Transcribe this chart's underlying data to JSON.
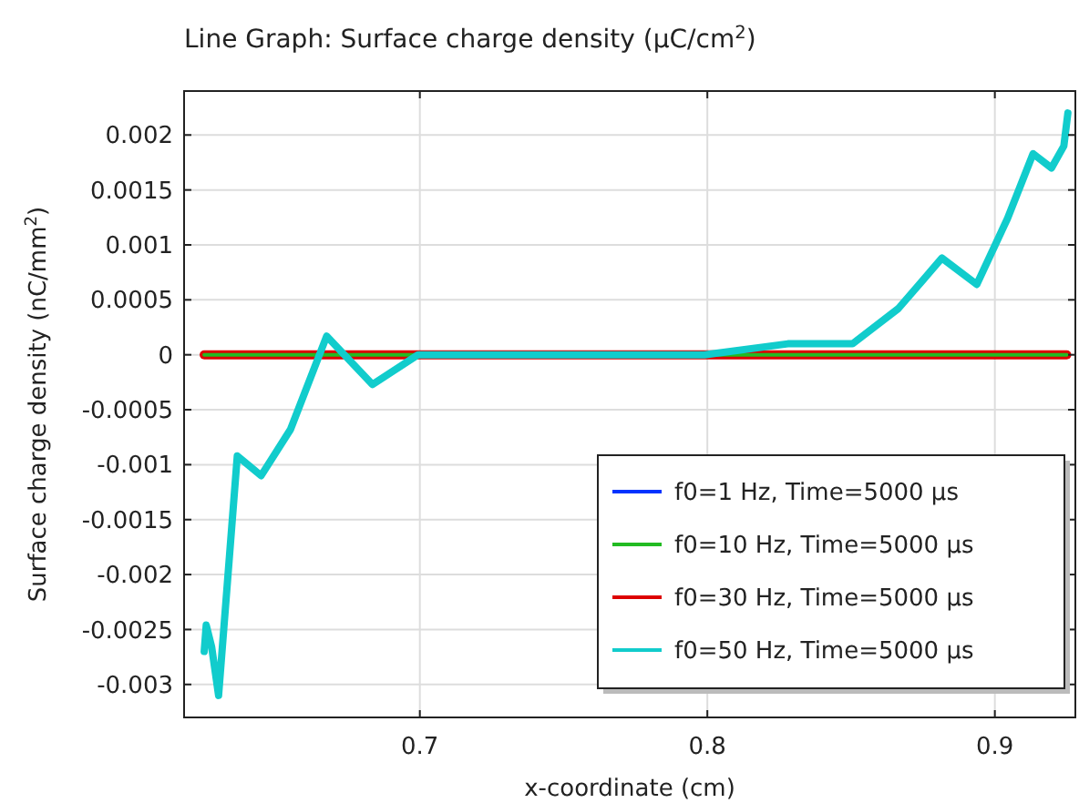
{
  "chart_data": {
    "type": "line",
    "title": "Line Graph: Surface charge density (μC/cm$^{2}$)",
    "xlabel": "x-coordinate (cm)",
    "ylabel": "Surface charge density (nC/mm$^{2}$)",
    "xlim": [
      0.618,
      0.928
    ],
    "ylim": [
      -0.0033,
      0.0024
    ],
    "xticks": [
      0.7,
      0.8,
      0.9
    ],
    "yticks": [
      -0.003,
      -0.0025,
      -0.002,
      -0.0015,
      -0.001,
      -0.0005,
      0,
      0.0005,
      0.001,
      0.0015,
      0.002
    ],
    "grid": true,
    "legend": "bottom right",
    "marker": "none",
    "line_style": "solid",
    "series": [
      {
        "name": "f0=1 Hz, Time=5000 µs",
        "color": "#0033ff"
      },
      {
        "name": "f0=10 Hz, Time=5000 µs",
        "color": "#22bb22",
        "x": [
          0.625,
          0.7,
          0.8,
          0.9,
          0.925
        ],
        "values": [
          0,
          0,
          0,
          0,
          0
        ]
      },
      {
        "name": "f0=30 Hz, Time=5000 µs",
        "color": "#dd0000",
        "x": [
          0.625,
          0.66,
          0.7,
          0.79,
          0.83,
          0.9,
          0.925
        ],
        "values": [
          0,
          0,
          0,
          0,
          0,
          0,
          0
        ]
      },
      {
        "name": "f0=50 Hz, Time=5000 µs",
        "color": "#11cccc",
        "x": [
          0.625,
          0.6257,
          0.6276,
          0.63,
          0.6365,
          0.6448,
          0.655,
          0.6676,
          0.6835,
          0.6994,
          0.75,
          0.799,
          0.828,
          0.8505,
          0.8664,
          0.8816,
          0.8937,
          0.9044,
          0.9133,
          0.9197,
          0.924,
          0.9254
        ],
        "values": [
          -0.0027,
          -0.00246,
          -0.00266,
          -0.0031,
          -0.00092,
          -0.0011,
          -0.00068,
          0.00017,
          -0.00027,
          0,
          0,
          0,
          0.0001,
          0.0001,
          0.00042,
          0.00088,
          0.00064,
          0.00124,
          0.00183,
          0.0017,
          0.0019,
          0.0022
        ]
      }
    ]
  }
}
